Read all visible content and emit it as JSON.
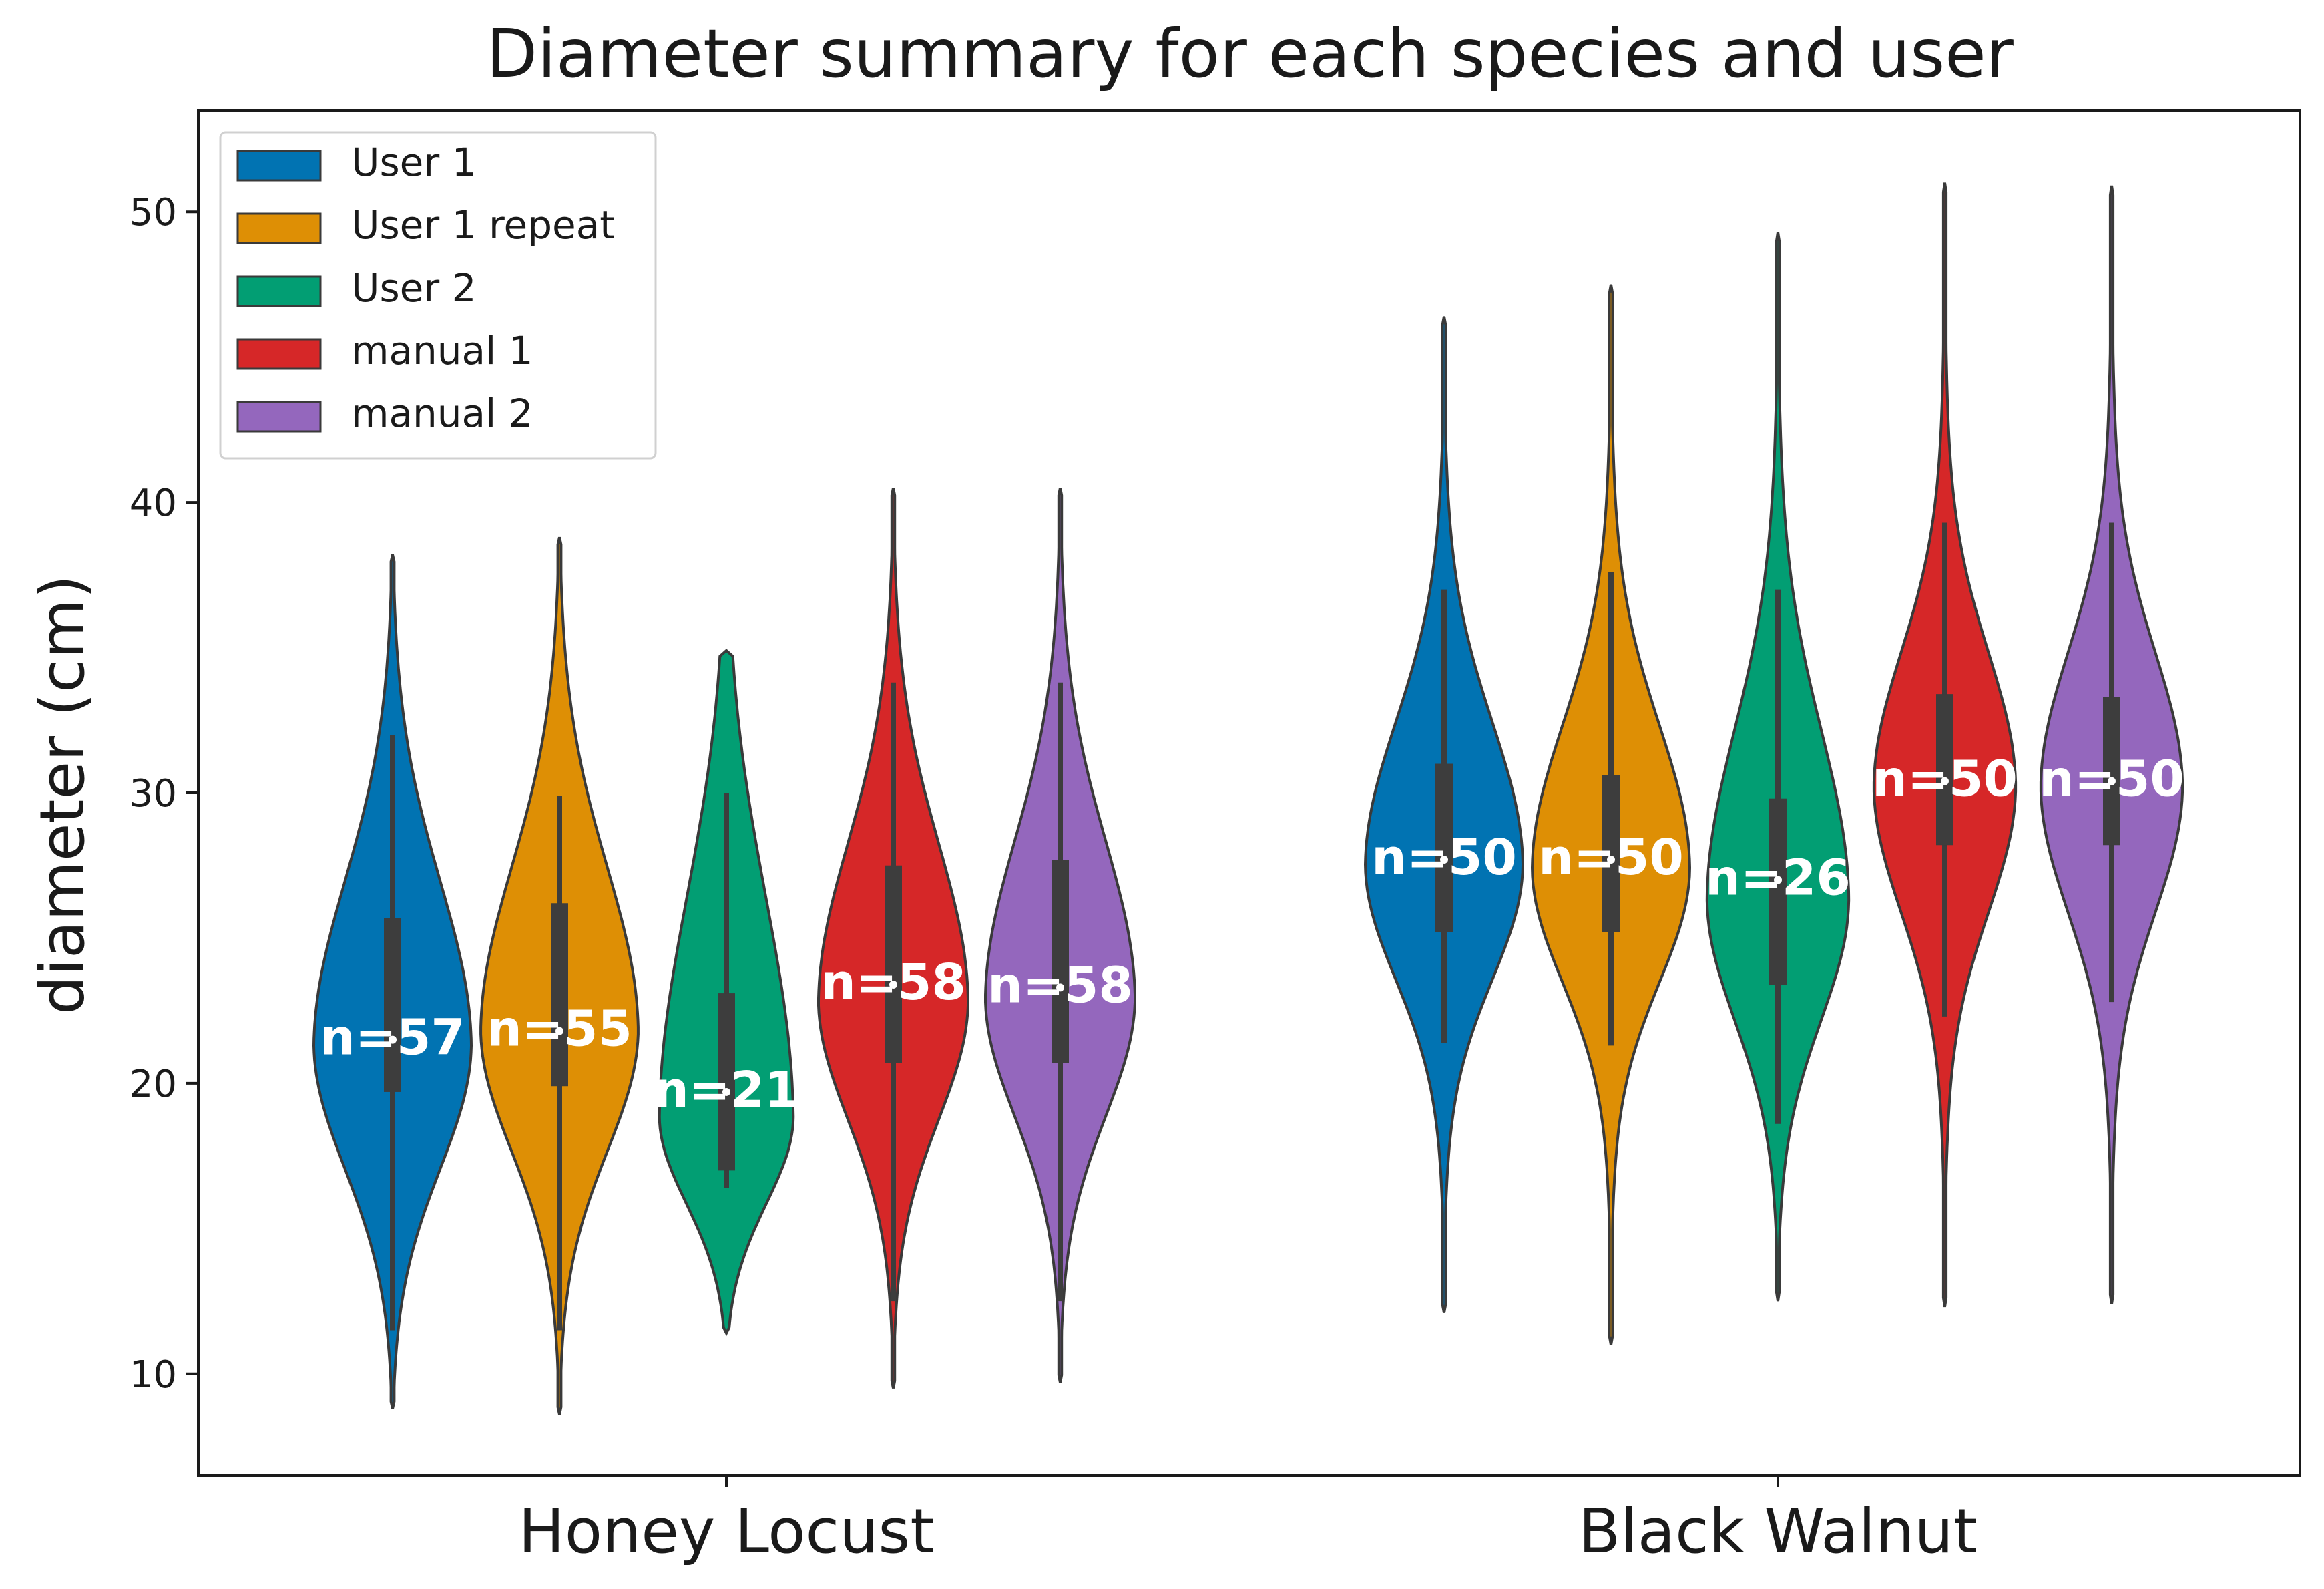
{
  "chart_data": {
    "type": "violin",
    "title": "Diameter summary for each species and user",
    "xlabel": "",
    "ylabel": "diameter (cm)",
    "ylim": [
      6.5,
      53.5
    ],
    "yticks": [
      10,
      20,
      30,
      40,
      50
    ],
    "grid": false,
    "legend_position": "top-left",
    "categories": [
      "Honey Locust",
      "Black Walnut"
    ],
    "series": [
      {
        "name": "User 1",
        "color": "#0173b2",
        "groups": [
          {
            "category": "Honey Locust",
            "n": 57,
            "label": "n=57",
            "min": 8.8,
            "q1": 19.7,
            "median": 21.5,
            "q3": 25.7,
            "max": 38.2,
            "whisker_low": 11.5,
            "whisker_high": 32.0,
            "mode": 21.3,
            "width": 1.0,
            "sd_low": 4.2,
            "sd_high": 5.6
          },
          {
            "category": "Black Walnut",
            "n": 50,
            "label": "n=50",
            "min": 12.1,
            "q1": 25.2,
            "median": 27.7,
            "q3": 31.0,
            "max": 46.4,
            "whisker_low": 21.4,
            "whisker_high": 37.0,
            "mode": 27.5,
            "width": 1.0,
            "sd_low": 3.9,
            "sd_high": 4.9
          }
        ]
      },
      {
        "name": "User 1 repeat",
        "color": "#de8f05",
        "groups": [
          {
            "category": "Honey Locust",
            "n": 55,
            "label": "n=55",
            "min": 8.6,
            "q1": 19.9,
            "median": 21.8,
            "q3": 26.2,
            "max": 38.8,
            "whisker_low": 11.5,
            "whisker_high": 29.9,
            "mode": 21.8,
            "width": 1.0,
            "sd_low": 4.1,
            "sd_high": 5.6
          },
          {
            "category": "Black Walnut",
            "n": 50,
            "label": "n=50",
            "min": 11.0,
            "q1": 25.2,
            "median": 27.7,
            "q3": 30.6,
            "max": 47.5,
            "whisker_low": 21.3,
            "whisker_high": 37.6,
            "mode": 27.4,
            "width": 1.0,
            "sd_low": 3.9,
            "sd_high": 4.9
          }
        ]
      },
      {
        "name": "User 2",
        "color": "#029e73",
        "groups": [
          {
            "category": "Honey Locust",
            "n": 21,
            "label": "n=21",
            "min": 11.4,
            "q1": 17.0,
            "median": 19.7,
            "q3": 23.1,
            "max": 34.9,
            "whisker_low": 16.4,
            "whisker_high": 30.0,
            "mode": 18.8,
            "width": 0.85,
            "sd_low": 2.9,
            "sd_high": 7.5
          },
          {
            "category": "Black Walnut",
            "n": 26,
            "label": "n=26",
            "min": 12.5,
            "q1": 23.4,
            "median": 27.0,
            "q3": 29.8,
            "max": 49.3,
            "whisker_low": 18.6,
            "whisker_high": 37.0,
            "mode": 26.3,
            "width": 0.9,
            "sd_low": 4.1,
            "sd_high": 5.8
          }
        ]
      },
      {
        "name": "manual 1",
        "color": "#d62728",
        "groups": [
          {
            "category": "Honey Locust",
            "n": 58,
            "label": "n=58",
            "min": 9.5,
            "q1": 20.7,
            "median": 23.4,
            "q3": 27.5,
            "max": 40.5,
            "whisker_low": 12.5,
            "whisker_high": 33.8,
            "mode": 22.8,
            "width": 0.95,
            "sd_low": 4.0,
            "sd_high": 5.4
          },
          {
            "category": "Black Walnut",
            "n": 50,
            "label": "n=50",
            "min": 12.3,
            "q1": 28.2,
            "median": 30.4,
            "q3": 33.4,
            "max": 51.0,
            "whisker_low": 22.3,
            "whisker_high": 39.3,
            "mode": 30.2,
            "width": 0.9,
            "sd_low": 4.3,
            "sd_high": 4.6
          }
        ]
      },
      {
        "name": "manual 2",
        "color": "#9467bd",
        "groups": [
          {
            "category": "Honey Locust",
            "n": 58,
            "label": "n=58",
            "min": 9.7,
            "q1": 20.7,
            "median": 23.3,
            "q3": 27.7,
            "max": 40.5,
            "whisker_low": 12.5,
            "whisker_high": 33.8,
            "mode": 22.9,
            "width": 0.95,
            "sd_low": 4.0,
            "sd_high": 5.4
          },
          {
            "category": "Black Walnut",
            "n": 50,
            "label": "n=50",
            "min": 12.4,
            "q1": 28.2,
            "median": 30.4,
            "q3": 33.3,
            "max": 50.9,
            "whisker_low": 22.8,
            "whisker_high": 39.3,
            "mode": 30.2,
            "width": 0.9,
            "sd_low": 4.3,
            "sd_high": 4.6
          }
        ]
      }
    ]
  }
}
